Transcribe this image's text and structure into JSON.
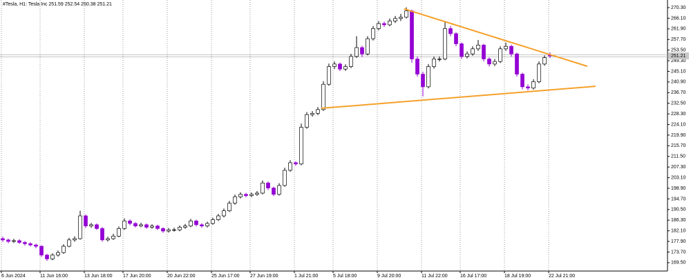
{
  "chart_data": {
    "type": "candlestick",
    "title": "#Tesla, H1:  Tesla Inc  251.59 252.54 250.38 251.21",
    "categories": [
      "6 Jun 2024",
      null,
      null,
      null,
      null,
      null,
      null,
      "11 Jun 16:00",
      null,
      null,
      null,
      null,
      null,
      null,
      null,
      "13 Jun 18:00",
      null,
      null,
      null,
      null,
      null,
      null,
      "17 Jun 20:00",
      null,
      null,
      null,
      null,
      null,
      null,
      null,
      "20 Jun 22:00",
      null,
      null,
      null,
      null,
      null,
      null,
      null,
      "25 Jun 17:00",
      null,
      null,
      null,
      null,
      null,
      null,
      "27 Jun 19:00",
      null,
      null,
      null,
      null,
      null,
      null,
      null,
      "1 Jul 21:00",
      null,
      null,
      null,
      null,
      null,
      null,
      "5 Jul 18:00",
      null,
      null,
      null,
      null,
      null,
      null,
      null,
      "9 Jul 20:00",
      null,
      null,
      null,
      null,
      null,
      null,
      null,
      "11 Jul 22:00",
      null,
      null,
      null,
      null,
      null,
      null,
      "16 Jul 17:00",
      null,
      null,
      null,
      null,
      null,
      null,
      null,
      "18 Jul 19:00",
      null,
      null,
      null,
      null,
      null,
      null,
      null,
      "22 Jul 21:00"
    ],
    "open": [
      179.0,
      178.5,
      177.9,
      178.2,
      177.5,
      177.0,
      176.5,
      176.0,
      172.5,
      171.0,
      172.5,
      173.5,
      176.0,
      178.5,
      179.0,
      188.0,
      184.0,
      184.5,
      183.0,
      178.5,
      179.0,
      180.0,
      183.0,
      186.0,
      185.0,
      184.0,
      184.5,
      183.5,
      184.0,
      183.0,
      182.0,
      182.5,
      182.5,
      183.5,
      184.0,
      186.0,
      184.5,
      184.0,
      185.0,
      186.5,
      188.0,
      190.0,
      193.0,
      195.5,
      196.5,
      196.0,
      196.5,
      197.0,
      201.0,
      199.0,
      196.5,
      200.0,
      206.0,
      209.0,
      208.5,
      223.0,
      228.0,
      228.5,
      230.0,
      240.0,
      247.0,
      248.0,
      246.0,
      247.0,
      251.0,
      254.5,
      252.0,
      258.0,
      262.0,
      264.0,
      263.5,
      265.0,
      266.0,
      266.5,
      269.0,
      250.0,
      244.0,
      239.0,
      247.0,
      250.0,
      250.0,
      262.0,
      260.0,
      256.0,
      251.0,
      252.0,
      254.0,
      255.5,
      250.0,
      248.0,
      249.0,
      254.0,
      255.0,
      252.0,
      244.0,
      239.0,
      238.5,
      241.0,
      248.0,
      251.59
    ],
    "high": [
      179.8,
      179.0,
      178.9,
      178.8,
      178.1,
      177.6,
      177.0,
      176.4,
      173.0,
      173.2,
      174.3,
      176.8,
      179.3,
      179.9,
      190.0,
      188.5,
      185.2,
      185.0,
      183.6,
      179.8,
      180.9,
      183.8,
      187.0,
      186.6,
      185.5,
      185.3,
      185.0,
      184.7,
      184.5,
      183.5,
      183.2,
      183.3,
      184.2,
      184.8,
      186.8,
      186.5,
      185.1,
      185.7,
      187.3,
      188.8,
      190.9,
      193.9,
      196.4,
      197.3,
      197.1,
      197.2,
      197.8,
      202.0,
      201.6,
      199.5,
      200.9,
      207.0,
      210.0,
      209.6,
      224.5,
      229.0,
      229.4,
      231.0,
      241.2,
      248.2,
      249.0,
      248.6,
      247.9,
      252.0,
      259.0,
      255.2,
      259.0,
      263.0,
      265.0,
      264.8,
      266.0,
      267.0,
      267.8,
      270.4,
      269.5,
      251.0,
      245.0,
      248.0,
      251.0,
      251.0,
      264.5,
      263.0,
      260.6,
      256.5,
      253.0,
      255.0,
      257.5,
      256.0,
      250.6,
      250.0,
      255.0,
      256.5,
      255.6,
      252.5,
      244.6,
      240.0,
      242.0,
      249.0,
      251.4,
      252.54
    ],
    "low": [
      177.7,
      177.2,
      177.3,
      176.9,
      176.3,
      175.9,
      175.2,
      171.8,
      170.2,
      170.5,
      171.9,
      173.0,
      175.6,
      177.8,
      178.6,
      183.2,
      183.3,
      182.4,
      177.8,
      177.9,
      178.5,
      179.6,
      182.5,
      184.3,
      183.4,
      183.5,
      182.9,
      182.9,
      182.4,
      181.3,
      181.4,
      181.8,
      181.9,
      182.9,
      183.5,
      183.8,
      183.3,
      183.4,
      184.5,
      186.0,
      187.4,
      189.5,
      192.4,
      194.9,
      195.3,
      195.4,
      195.9,
      196.5,
      198.2,
      195.8,
      196.0,
      199.5,
      205.4,
      207.8,
      208.0,
      222.4,
      227.2,
      227.8,
      229.5,
      239.4,
      246.0,
      245.2,
      245.3,
      246.4,
      250.4,
      250.8,
      251.4,
      257.3,
      261.3,
      262.6,
      262.9,
      264.2,
      265.0,
      266.0,
      248.5,
      243.0,
      235.2,
      238.4,
      246.2,
      249.0,
      249.5,
      259.0,
      255.0,
      250.0,
      250.2,
      251.3,
      253.2,
      249.0,
      247.0,
      247.2,
      248.4,
      253.2,
      251.0,
      243.0,
      238.0,
      237.6,
      237.9,
      240.4,
      247.3,
      250.38
    ],
    "close": [
      178.5,
      177.9,
      178.2,
      177.5,
      177.0,
      176.5,
      176.0,
      172.5,
      171.0,
      172.5,
      173.5,
      176.0,
      178.5,
      179.0,
      188.0,
      184.0,
      184.5,
      183.0,
      178.5,
      179.0,
      180.0,
      183.0,
      186.0,
      185.0,
      184.0,
      184.5,
      183.5,
      184.0,
      183.0,
      182.0,
      182.5,
      182.5,
      183.5,
      184.0,
      186.0,
      184.5,
      184.0,
      185.0,
      186.5,
      188.0,
      190.0,
      193.0,
      195.5,
      196.5,
      196.0,
      196.5,
      197.0,
      201.0,
      199.0,
      196.5,
      200.0,
      206.0,
      209.0,
      208.5,
      223.0,
      228.0,
      228.5,
      230.0,
      240.0,
      247.0,
      248.0,
      246.0,
      247.0,
      251.0,
      254.5,
      252.0,
      258.0,
      262.0,
      264.0,
      263.5,
      265.0,
      266.0,
      266.5,
      269.0,
      250.0,
      244.0,
      239.0,
      247.0,
      250.0,
      250.0,
      262.0,
      260.0,
      256.0,
      251.0,
      252.0,
      254.0,
      255.5,
      250.0,
      248.0,
      249.0,
      254.0,
      255.0,
      252.0,
      244.0,
      239.0,
      238.5,
      241.0,
      248.0,
      250.5,
      251.21
    ],
    "up_color": "#ffffff",
    "down_color": "#9400d3",
    "last_price": 251.21,
    "ylim": [
      166.2,
      273.3
    ],
    "yticks": [
      {
        "value": 270.3,
        "label": "270.30"
      },
      {
        "value": 266.1,
        "label": "266.10"
      },
      {
        "value": 261.9,
        "label": "261.90"
      },
      {
        "value": 257.7,
        "label": "257.70"
      },
      {
        "value": 253.5,
        "label": "253.50"
      },
      {
        "value": 249.3,
        "label": "249.30"
      },
      {
        "value": 245.1,
        "label": "245.10"
      },
      {
        "value": 240.9,
        "label": "240.90"
      },
      {
        "value": 236.7,
        "label": "236.70"
      },
      {
        "value": 232.5,
        "label": "232.50"
      },
      {
        "value": 228.3,
        "label": "228.30"
      },
      {
        "value": 224.1,
        "label": "224.10"
      },
      {
        "value": 219.9,
        "label": "219.90"
      },
      {
        "value": 215.7,
        "label": "215.70"
      },
      {
        "value": 211.5,
        "label": "211.50"
      },
      {
        "value": 207.3,
        "label": "207.30"
      },
      {
        "value": 203.1,
        "label": "203.10"
      },
      {
        "value": 198.9,
        "label": "198.90"
      },
      {
        "value": 194.7,
        "label": "194.70"
      },
      {
        "value": 190.5,
        "label": "190.50"
      },
      {
        "value": 186.3,
        "label": "186.30"
      },
      {
        "value": 182.1,
        "label": "182.10"
      },
      {
        "value": 177.9,
        "label": "177.90"
      },
      {
        "value": 173.7,
        "label": "173.70"
      },
      {
        "value": 169.5,
        "label": "169.50"
      }
    ],
    "grid": true,
    "trendlines": [
      {
        "color": "#f5a029",
        "start": {
          "x": 72.6,
          "y": 269.8
        },
        "end": {
          "x": 105.75,
          "y": 247.1
        }
      },
      {
        "color": "#f5a029",
        "start": {
          "x": 57.6,
          "y": 230.5
        },
        "end": {
          "x": 107.25,
          "y": 239.2
        }
      }
    ]
  }
}
